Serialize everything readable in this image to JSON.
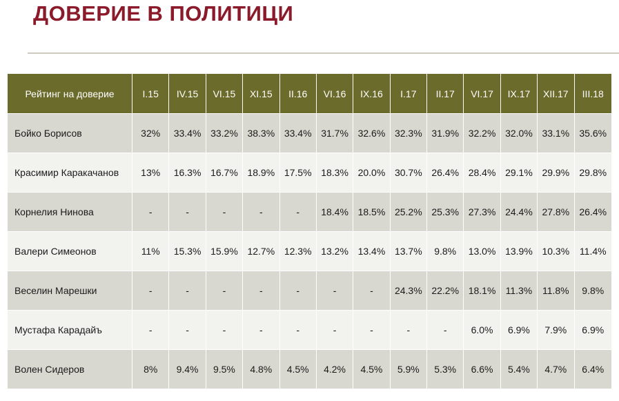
{
  "title": "ДОВЕРИЕ В ПОЛИТИЦИ",
  "table": {
    "header_label": "Рейтинг на доверие",
    "periods": [
      "I.15",
      "IV.15",
      "VI.15",
      "XI.15",
      "II.16",
      "VI.16",
      "IX.16",
      "I.17",
      "II.17",
      "VI.17",
      "IX.17",
      "XII.17",
      "III.18"
    ],
    "rows": [
      {
        "name": "Бойко Борисов",
        "values": [
          "32%",
          "33.4%",
          "33.2%",
          "38.3%",
          "33.4%",
          "31.7%",
          "32.6%",
          "32.3%",
          "31.9%",
          "32.2%",
          "32.0%",
          "33.1%",
          "35.6%"
        ]
      },
      {
        "name": "Красимир Каракачанов",
        "values": [
          "13%",
          "16.3%",
          "16.7%",
          "18.9%",
          "17.5%",
          "18.3%",
          "20.0%",
          "30.7%",
          "26.4%",
          "28.4%",
          "29.1%",
          "29.9%",
          "29.8%"
        ]
      },
      {
        "name": "Корнелия Нинова",
        "values": [
          "-",
          "-",
          "-",
          "-",
          "-",
          "18.4%",
          "18.5%",
          "25.2%",
          "25.3%",
          "27.3%",
          "24.4%",
          "27.8%",
          "26.4%"
        ]
      },
      {
        "name": "Валери Симеонов",
        "values": [
          "11%",
          "15.3%",
          "15.9%",
          "12.7%",
          "12.3%",
          "13.2%",
          "13.4%",
          "13.7%",
          "9.8%",
          "13.0%",
          "13.9%",
          "10.3%",
          "11.4%"
        ]
      },
      {
        "name": "Веселин Марешки",
        "values": [
          "-",
          "-",
          "-",
          "-",
          "-",
          "-",
          "-",
          "24.3%",
          "22.2%",
          "18.1%",
          "11.3%",
          "11.8%",
          "9.8%"
        ]
      },
      {
        "name": "Мустафа Карадайъ",
        "values": [
          "-",
          "-",
          "-",
          "-",
          "-",
          "-",
          "-",
          "-",
          "-",
          "6.0%",
          "6.9%",
          "7.9%",
          "6.9%"
        ]
      },
      {
        "name": "Волен Сидеров",
        "values": [
          "8%",
          "9.4%",
          "9.5%",
          "4.8%",
          "4.5%",
          "4.2%",
          "4.5%",
          "5.9%",
          "5.3%",
          "6.6%",
          "5.4%",
          "4.7%",
          "6.4%"
        ]
      }
    ]
  },
  "colors": {
    "title": "#8b1a2b",
    "header_bg": "#6b6b2c",
    "row_shade": "#d9d8d0",
    "row_plain": "#f2f2ee"
  }
}
